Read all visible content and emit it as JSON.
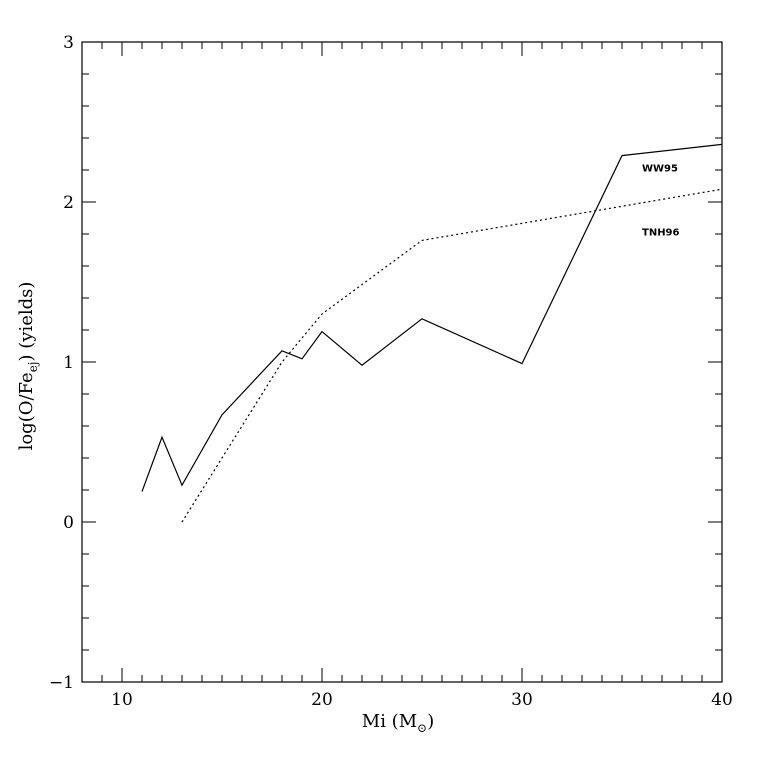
{
  "chart_data": {
    "type": "line",
    "xlabel": "Mi (M",
    "xlabel_sub": "⊙",
    "xlabel_close": ")",
    "ylabel": "log(O/Fe",
    "ylabel_sub": "ej",
    "ylabel_close": ") (yields)",
    "xlim": [
      8,
      40
    ],
    "ylim": [
      -1,
      3
    ],
    "x_major_ticks": [
      10,
      20,
      30,
      40
    ],
    "x_minor_step": 1,
    "y_major_ticks": [
      -1,
      0,
      1,
      2,
      3
    ],
    "y_minor_step": 0.2,
    "x_tick_labels": [
      "10",
      "20",
      "30",
      "40"
    ],
    "y_tick_labels": [
      "−1",
      "0",
      "1",
      "2",
      "3"
    ],
    "grid": false,
    "series": [
      {
        "name": "WW95",
        "style": "solid",
        "x": [
          11,
          12,
          13,
          15,
          18,
          19,
          20,
          22,
          25,
          30,
          35,
          40
        ],
        "y": [
          0.19,
          0.53,
          0.23,
          0.67,
          1.07,
          1.02,
          1.19,
          0.98,
          1.27,
          0.99,
          2.29,
          2.36
        ]
      },
      {
        "name": "TNH96",
        "style": "dotted",
        "x": [
          13,
          15,
          18,
          20,
          25,
          40
        ],
        "y": [
          0.0,
          0.4,
          1.0,
          1.3,
          1.76,
          2.08
        ]
      }
    ],
    "annotations": [
      {
        "text": "WW95",
        "x": 36,
        "y": 2.19
      },
      {
        "text": "TNH96",
        "x": 36,
        "y": 1.79
      }
    ]
  }
}
